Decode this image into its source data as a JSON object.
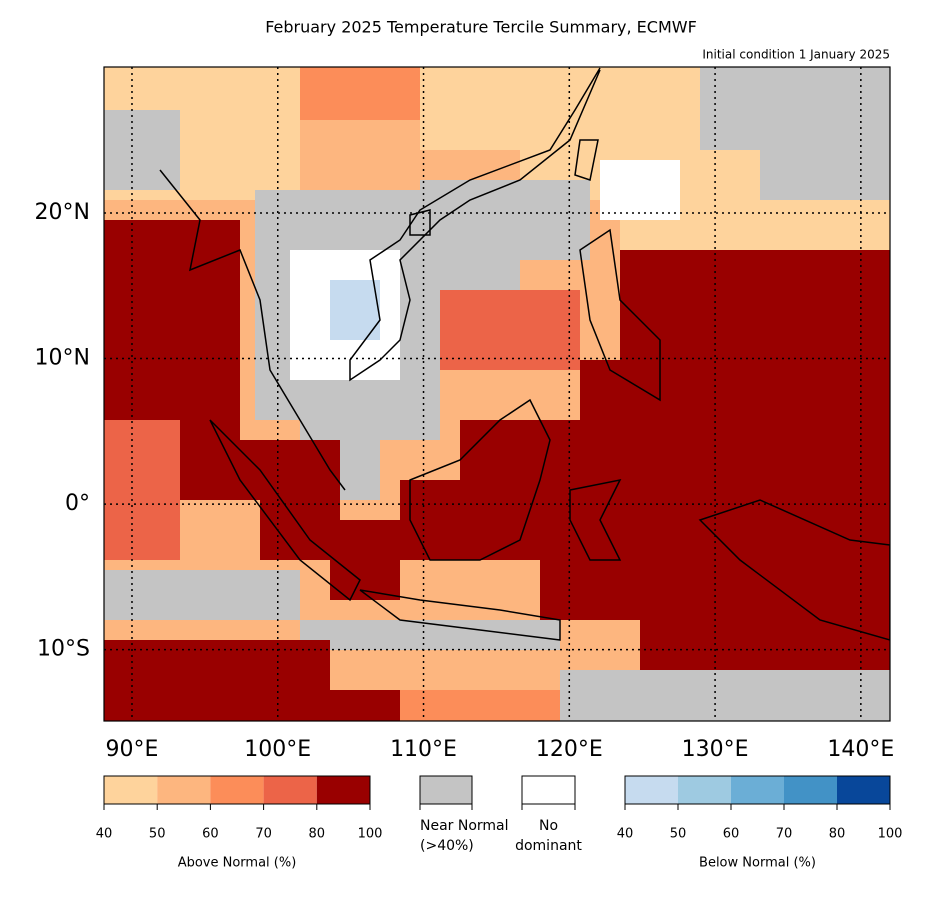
{
  "map": {
    "title": "February 2025 Temperature Tercile Summary, ECMWF",
    "subtitle": "Initial condition 1 January 2025",
    "xlim": [
      88.08,
      142.0
    ],
    "ylim": [
      -14.9,
      30.03
    ],
    "xticks": [
      {
        "value": 90,
        "label": "90°E"
      },
      {
        "value": 100,
        "label": "100°E"
      },
      {
        "value": 110,
        "label": "110°E"
      },
      {
        "value": 120,
        "label": "120°E"
      },
      {
        "value": 130,
        "label": "130°E"
      },
      {
        "value": 140,
        "label": "140°E"
      }
    ],
    "yticks": [
      {
        "value": 20,
        "label": "20°N"
      },
      {
        "value": 10,
        "label": "10°N"
      },
      {
        "value": 0,
        "label": "0°"
      },
      {
        "value": -10,
        "label": "10°S"
      }
    ],
    "above": {
      "label": "Above Normal (%)",
      "ticks": [
        40,
        50,
        60,
        70,
        80,
        100
      ],
      "colors": [
        "#fed39c",
        "#fdb67f",
        "#fc8d59",
        "#ec6448",
        "#990000"
      ]
    },
    "near": {
      "label": [
        "Near Normal",
        "(>40%)"
      ],
      "color": "#c4c4c4"
    },
    "none": {
      "label": [
        "No",
        "dominant"
      ],
      "color": "#ffffff"
    },
    "below": {
      "label": "Below Normal (%)",
      "ticks": [
        40,
        50,
        60,
        70,
        80,
        100
      ],
      "colors": [
        "#c6dbef",
        "#9ecae1",
        "#6baed6",
        "#4292c6",
        "#08479a"
      ]
    }
  }
}
